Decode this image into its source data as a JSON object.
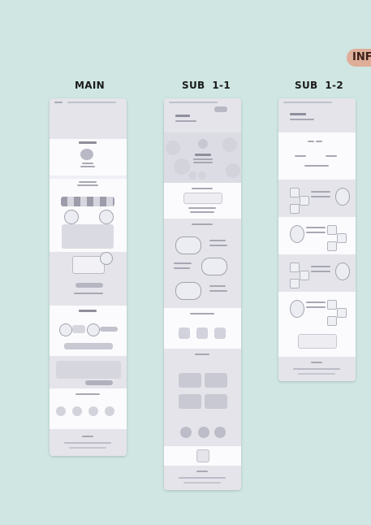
{
  "columns": [
    {
      "title": "MAIN"
    },
    {
      "title": "SUB  1-1"
    },
    {
      "title": "SUB  1-2"
    }
  ],
  "badge": {
    "label": "INF"
  },
  "colors": {
    "background": "#cfe6e2",
    "panel_gray": "#e4e4ea",
    "panel_white": "#fbfbfd",
    "line": "#a8a8b4",
    "badge": "#dfae98"
  }
}
